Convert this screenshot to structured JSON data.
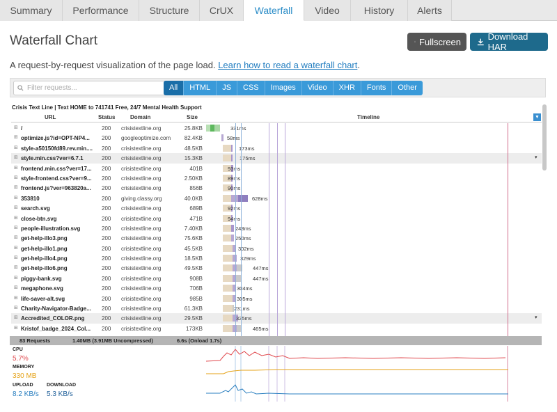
{
  "tabs": [
    "Summary",
    "Performance",
    "Structure",
    "CrUX",
    "Waterfall",
    "Video",
    "History",
    "Alerts"
  ],
  "active_tab": "Waterfall",
  "page_title": "Waterfall Chart",
  "buttons": {
    "fullscreen": "Fullscreen",
    "download_har": "Download HAR"
  },
  "description": {
    "text": "A request-by-request visualization of the page load.",
    "link": "Learn how to read a waterfall chart",
    "period": "."
  },
  "filter": {
    "placeholder": "Filter requests...",
    "chips": [
      "All",
      "HTML",
      "JS",
      "CSS",
      "Images",
      "Video",
      "XHR",
      "Fonts",
      "Other"
    ],
    "selected": "All"
  },
  "chart": {
    "title": "Crisis Text Line | Text HOME to 741741 Free, 24/7 Mental Health Support",
    "columns": {
      "url": "URL",
      "status": "Status",
      "domain": "Domain",
      "size": "Size",
      "timeline": "Timeline"
    },
    "requests": [
      {
        "url": "/",
        "status": "200",
        "domain": "crisistextline.org",
        "size": "25.8KB",
        "ms": "331ms"
      },
      {
        "url": "optimize.js?id=OPT-NP4...",
        "status": "200",
        "domain": "googleoptimize.com",
        "size": "82.4KB",
        "ms": "58ms"
      },
      {
        "url": "style-a50150fd89.rev.min....",
        "status": "200",
        "domain": "crisistextline.org",
        "size": "48.5KB",
        "ms": "173ms"
      },
      {
        "url": "style.min.css?ver=6.7.1",
        "status": "200",
        "domain": "crisistextline.org",
        "size": "15.3KB",
        "ms": "175ms"
      },
      {
        "url": "frontend.min.css?ver=17...",
        "status": "200",
        "domain": "crisistextline.org",
        "size": "401B",
        "ms": "93ms"
      },
      {
        "url": "style-frontend.css?ver=9...",
        "status": "200",
        "domain": "crisistextline.org",
        "size": "2.50KB",
        "ms": "89ms"
      },
      {
        "url": "frontend.js?ver=963820a...",
        "status": "200",
        "domain": "crisistextline.org",
        "size": "856B",
        "ms": "90ms"
      },
      {
        "url": "353810",
        "status": "200",
        "domain": "giving.classy.org",
        "size": "40.0KB",
        "ms": "628ms"
      },
      {
        "url": "search.svg",
        "status": "200",
        "domain": "crisistextline.org",
        "size": "689B",
        "ms": "92ms"
      },
      {
        "url": "close-btn.svg",
        "status": "200",
        "domain": "crisistextline.org",
        "size": "471B",
        "ms": "94ms"
      },
      {
        "url": "people-illustration.svg",
        "status": "200",
        "domain": "crisistextline.org",
        "size": "7.40KB",
        "ms": "243ms"
      },
      {
        "url": "get-help-illo3.png",
        "status": "200",
        "domain": "crisistextline.org",
        "size": "75.6KB",
        "ms": "250ms"
      },
      {
        "url": "get-help-illo1.png",
        "status": "200",
        "domain": "crisistextline.org",
        "size": "45.5KB",
        "ms": "302ms"
      },
      {
        "url": "get-help-illo4.png",
        "status": "200",
        "domain": "crisistextline.org",
        "size": "18.5KB",
        "ms": "329ms"
      },
      {
        "url": "get-help-illo6.png",
        "status": "200",
        "domain": "crisistextline.org",
        "size": "49.5KB",
        "ms": "447ms"
      },
      {
        "url": "piggy-bank.svg",
        "status": "200",
        "domain": "crisistextline.org",
        "size": "908B",
        "ms": "447ms"
      },
      {
        "url": "megaphone.svg",
        "status": "200",
        "domain": "crisistextline.org",
        "size": "706B",
        "ms": "304ms"
      },
      {
        "url": "life-saver-alt.svg",
        "status": "200",
        "domain": "crisistextline.org",
        "size": "985B",
        "ms": "305ms"
      },
      {
        "url": "Charity-Navigator-Badge...",
        "status": "200",
        "domain": "crisistextline.org",
        "size": "61.3KB",
        "ms": "231ms"
      },
      {
        "url": "Accredited_COLOR.png",
        "status": "200",
        "domain": "crisistextline.org",
        "size": "29.5KB",
        "ms": "325ms"
      },
      {
        "url": "Kristof_badge_2024_Col...",
        "status": "200",
        "domain": "crisistextline.org",
        "size": "173KB",
        "ms": "465ms"
      }
    ],
    "summary": {
      "requests": "83 Requests",
      "transfer": "1.40MB (3.91MB Uncompressed)",
      "time": "6.6s (Onload 1.7s)"
    }
  },
  "metrics": {
    "cpu_label": "CPU",
    "cpu_value": "5.7%",
    "memory_label": "MEMORY",
    "memory_value": "330 MB",
    "upload_label": "UPLOAD",
    "upload_value": "8.2 KB/s",
    "download_label": "DOWNLOAD",
    "download_value": "5.3 KB/s"
  },
  "colors": {
    "accent": "#2a8cc7",
    "cpu": "#e0474c",
    "memory": "#e5a216",
    "bandwidth": "#2a7fc0",
    "html_bar": "#5db85d",
    "js_bar": "#b7a8d3",
    "wait": "#e7d9c2"
  }
}
